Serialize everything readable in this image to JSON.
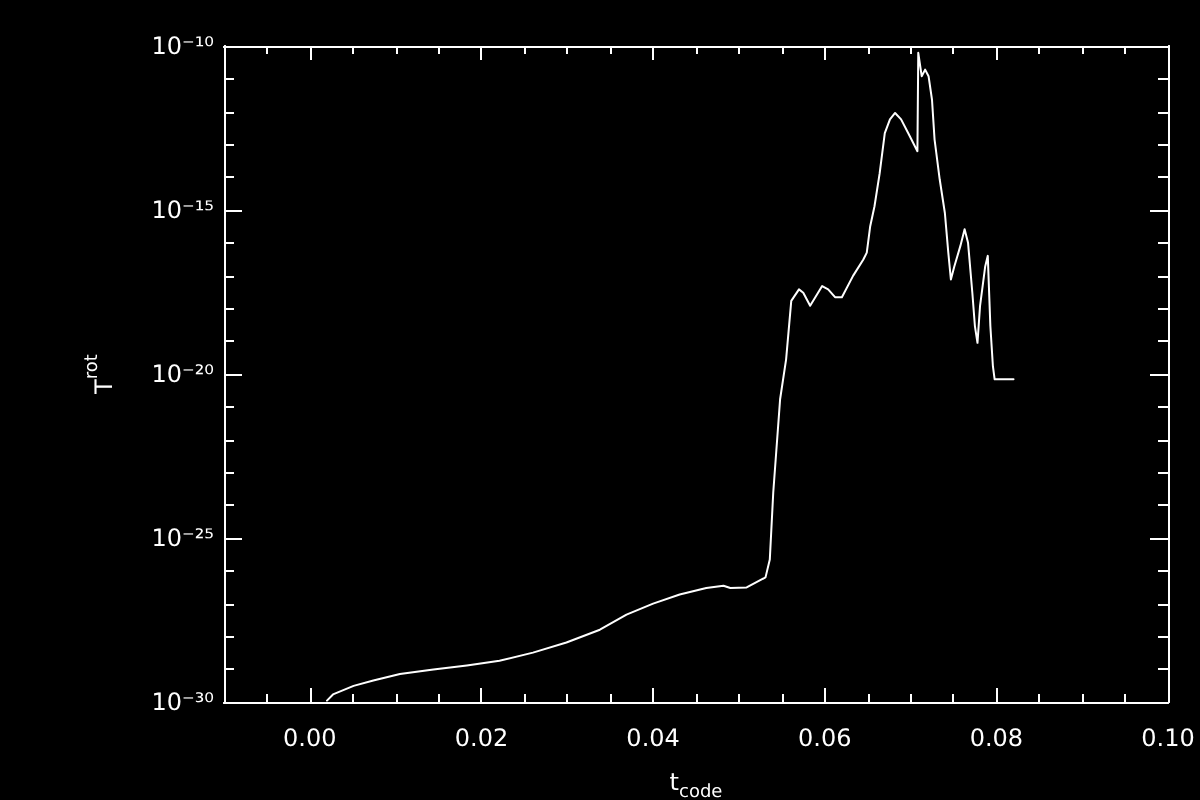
{
  "chart_data": {
    "type": "line",
    "xlabel": "t$_{code}$",
    "ylabel": "T$^{rot}$",
    "x": [
      0.002,
      0.0027,
      0.0051,
      0.0074,
      0.0105,
      0.0144,
      0.0183,
      0.0221,
      0.026,
      0.0299,
      0.0338,
      0.0369,
      0.04,
      0.0431,
      0.0462,
      0.0482,
      0.049,
      0.0509,
      0.0531,
      0.0536,
      0.054,
      0.0548,
      0.0555,
      0.0561,
      0.057,
      0.0575,
      0.0583,
      0.0597,
      0.0604,
      0.0612,
      0.062,
      0.0633,
      0.0645,
      0.0649,
      0.0653,
      0.0658,
      0.0664,
      0.067,
      0.0676,
      0.0682,
      0.0689,
      0.0699,
      0.0708,
      0.0709,
      0.0713,
      0.0717,
      0.0721,
      0.0725,
      0.0728,
      0.0734,
      0.074,
      0.0744,
      0.0747,
      0.0751,
      0.0758,
      0.0763,
      0.0767,
      0.0772,
      0.0775,
      0.0778,
      0.0781,
      0.0787,
      0.079,
      0.0793,
      0.0796,
      0.0798,
      0.082
    ],
    "series": [
      {
        "color": "#ffffff",
        "values": [
          1.1e-30,
          1.7e-30,
          3.1e-30,
          4.5e-30,
          7.1e-30,
          9.8e-30,
          1.3e-29,
          1.8e-29,
          3.2e-29,
          6.5e-29,
          1.6e-28,
          4.6e-28,
          1e-27,
          1.9e-27,
          3e-27,
          3.5e-27,
          3e-27,
          3.1e-27,
          6.3e-27,
          2.2e-26,
          2.4e-24,
          1.7e-21,
          2.8e-20,
          1.7e-18,
          3.8e-18,
          3e-18,
          1.2e-18,
          4.8e-18,
          3.8e-18,
          2.2e-18,
          2.2e-18,
          9.8e-18,
          3.1e-17,
          5e-17,
          3.2e-16,
          1.3e-15,
          1.3e-14,
          2.2e-13,
          5.8e-13,
          9.1e-13,
          5.8e-13,
          1.8e-13,
          6.2e-14,
          6.2e-11,
          1.2e-11,
          1.9e-11,
          1.2e-11,
          2.3e-12,
          1.4e-13,
          8.5e-15,
          8.1e-16,
          5e-17,
          7.6e-18,
          1.9e-17,
          7.9e-17,
          2.6e-16,
          1e-16,
          3e-18,
          2.9e-19,
          8.9e-20,
          1.2e-18,
          1.9e-17,
          4e-17,
          2.9e-19,
          1.7e-20,
          6.9e-21,
          6.9e-21
        ]
      }
    ],
    "xlim": [
      -0.01,
      0.1
    ],
    "xticks": [
      {
        "value": -0.005,
        "label": null
      },
      {
        "value": 0,
        "label": "0.00"
      },
      {
        "value": 0.005,
        "label": null
      },
      {
        "value": 0.01,
        "label": null
      },
      {
        "value": 0.015,
        "label": null
      },
      {
        "value": 0.02,
        "label": "0.02"
      },
      {
        "value": 0.025,
        "label": null
      },
      {
        "value": 0.03,
        "label": null
      },
      {
        "value": 0.035,
        "label": null
      },
      {
        "value": 0.04,
        "label": "0.04"
      },
      {
        "value": 0.045,
        "label": null
      },
      {
        "value": 0.05,
        "label": null
      },
      {
        "value": 0.055,
        "label": null
      },
      {
        "value": 0.06,
        "label": "0.06"
      },
      {
        "value": 0.065,
        "label": null
      },
      {
        "value": 0.07,
        "label": null
      },
      {
        "value": 0.075,
        "label": null
      },
      {
        "value": 0.08,
        "label": "0.08"
      },
      {
        "value": 0.085,
        "label": null
      },
      {
        "value": 0.09,
        "label": null
      },
      {
        "value": 0.095,
        "label": null
      },
      {
        "value": 0.1,
        "label": "0.10"
      }
    ],
    "ylim": [
      1e-30,
      1e-10
    ],
    "yticks": [
      {
        "value": 1e-30,
        "label": "10⁻³⁰"
      },
      {
        "value": 1e-29,
        "label": null
      },
      {
        "value": 1e-28,
        "label": null
      },
      {
        "value": 1e-27,
        "label": null
      },
      {
        "value": 1e-26,
        "label": null
      },
      {
        "value": 1e-25,
        "label": "10⁻²⁵"
      },
      {
        "value": 1e-24,
        "label": null
      },
      {
        "value": 1e-23,
        "label": null
      },
      {
        "value": 1e-22,
        "label": null
      },
      {
        "value": 1e-21,
        "label": null
      },
      {
        "value": 1e-20,
        "label": "10⁻²⁰"
      },
      {
        "value": 1e-19,
        "label": null
      },
      {
        "value": 1e-18,
        "label": null
      },
      {
        "value": 1e-17,
        "label": null
      },
      {
        "value": 1e-16,
        "label": null
      },
      {
        "value": 1e-15,
        "label": "10⁻¹⁵"
      },
      {
        "value": 1e-14,
        "label": null
      },
      {
        "value": 1e-13,
        "label": null
      },
      {
        "value": 1e-12,
        "label": null
      },
      {
        "value": 1e-11,
        "label": null
      },
      {
        "value": 1e-10,
        "label": "10⁻¹⁰"
      }
    ],
    "log": "y",
    "marker": "none",
    "line_style": "solid"
  }
}
